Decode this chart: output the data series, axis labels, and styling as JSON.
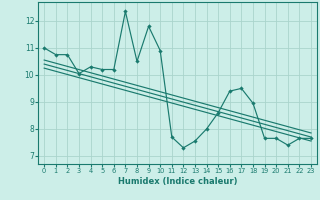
{
  "title": "",
  "xlabel": "Humidex (Indice chaleur)",
  "ylabel": "",
  "bg_color": "#cceee8",
  "grid_color": "#aad4cc",
  "line_color": "#1a7a6e",
  "xlim": [
    -0.5,
    23.5
  ],
  "ylim": [
    6.7,
    12.7
  ],
  "yticks": [
    7,
    8,
    9,
    10,
    11,
    12
  ],
  "xticks": [
    0,
    1,
    2,
    3,
    4,
    5,
    6,
    7,
    8,
    9,
    10,
    11,
    12,
    13,
    14,
    15,
    16,
    17,
    18,
    19,
    20,
    21,
    22,
    23
  ],
  "scatter_x": [
    0,
    1,
    2,
    3,
    4,
    5,
    6,
    7,
    8,
    9,
    10,
    11,
    12,
    13,
    14,
    15,
    16,
    17,
    18,
    19,
    20,
    21,
    22,
    23
  ],
  "scatter_y": [
    11.0,
    10.75,
    10.75,
    10.05,
    10.3,
    10.2,
    10.2,
    12.35,
    10.5,
    11.8,
    10.9,
    7.7,
    7.3,
    7.55,
    8.0,
    8.6,
    9.4,
    9.5,
    8.95,
    7.65,
    7.65,
    7.4,
    7.65,
    7.65
  ],
  "reg_line_pts": [
    [
      0,
      10.55
    ],
    [
      23,
      7.85
    ]
  ],
  "reg_line2_pts": [
    [
      0,
      10.4
    ],
    [
      23,
      7.7
    ]
  ],
  "reg_line3_pts": [
    [
      0,
      10.25
    ],
    [
      23,
      7.55
    ]
  ]
}
